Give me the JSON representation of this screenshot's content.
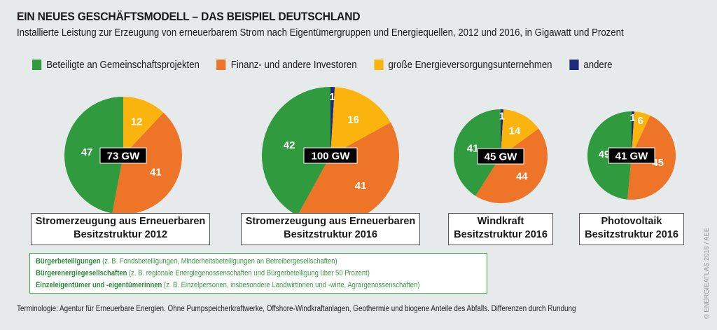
{
  "header": {
    "title": "EIN NEUES GESCHÄFTSMODELL – DAS BEISPIEL DEUTSCHLAND",
    "subtitle": "Installierte Leistung zur Erzeugung von erneuerbarem Strom nach Eigentümergruppen und Energiequellen, 2012 und 2016, in Gigawatt und Prozent"
  },
  "legend": [
    {
      "label": "Beteiligte an Gemeinschaftsprojekten",
      "color": "#2f9a3e"
    },
    {
      "label": "Finanz- und andere Investoren",
      "color": "#ee7428"
    },
    {
      "label": "große Energieversorgungsunternehmen",
      "color": "#fbb40d"
    },
    {
      "label": "andere",
      "color": "#1f2a7a"
    }
  ],
  "chart_data": [
    {
      "type": "pie",
      "title": "Stromerzeugung aus Erneuerbaren",
      "subtitle": "Besitzstruktur 2012",
      "total": "73 GW",
      "unit": "Prozent",
      "slices": [
        {
          "name": "andere",
          "value": 0,
          "label": ""
        },
        {
          "name": "große Energieversorgungsunternehmen",
          "value": 12,
          "label": "12"
        },
        {
          "name": "Finanz- und andere Investoren",
          "value": 41,
          "label": "41"
        },
        {
          "name": "Beteiligte an Gemeinschaftsprojekten",
          "value": 47,
          "label": "47"
        }
      ]
    },
    {
      "type": "pie",
      "title": "Stromerzeugung aus Erneuerbaren",
      "subtitle": "Besitzstruktur 2016",
      "total": "100 GW",
      "unit": "Prozent",
      "slices": [
        {
          "name": "andere",
          "value": 1,
          "label": "1"
        },
        {
          "name": "große Energieversorgungsunternehmen",
          "value": 16,
          "label": "16"
        },
        {
          "name": "Finanz- und andere Investoren",
          "value": 41,
          "label": "41"
        },
        {
          "name": "Beteiligte an Gemeinschaftsprojekten",
          "value": 42,
          "label": "42"
        }
      ]
    },
    {
      "type": "pie",
      "title": "Windkraft",
      "subtitle": "Besitzstruktur 2016",
      "total": "45 GW",
      "unit": "Prozent",
      "slices": [
        {
          "name": "andere",
          "value": 1,
          "label": "1"
        },
        {
          "name": "große Energieversorgungsunternehmen",
          "value": 14,
          "label": "14"
        },
        {
          "name": "Finanz- und andere Investoren",
          "value": 44,
          "label": "44"
        },
        {
          "name": "Beteiligte an Gemeinschaftsprojekten",
          "value": 41,
          "label": "41"
        }
      ]
    },
    {
      "type": "pie",
      "title": "Photovoltaik",
      "subtitle": "Besitzstruktur 2016",
      "total": "41 GW",
      "unit": "Prozent",
      "slices": [
        {
          "name": "andere",
          "value": 1,
          "label": "1"
        },
        {
          "name": "große Energieversorgungsunternehmen",
          "value": 6,
          "label": "6"
        },
        {
          "name": "Finanz- und andere Investoren",
          "value": 45,
          "label": "45"
        },
        {
          "name": "Beteiligte an Gemeinschaftsprojekten",
          "value": 49,
          "label": "49"
        }
      ]
    }
  ],
  "notes": [
    {
      "bold": "Bürgerbeteiligungen",
      "text": " (z. B. Fondsbeteiligungen, Minderheitsbeteiligungen an Betreibergesellschaften)"
    },
    {
      "bold": "Bürgerenergiegesellschaften",
      "text": " (z. B. regionale Energiegenossenschaften und Bürgerbeteiligung über 50 Prozent)"
    },
    {
      "bold": "Einzeleigentümer und -eigentümerinnen",
      "text": " (z. B. Einzelpersonen, insbesondere Landwirtinnen und -wirte, Agrargenossenschaften)"
    }
  ],
  "footer": "Terminologie: Agentur für Erneuerbare Energien. Ohne Pumpspeicherkraftwerke, Offshore-Windkraftanlagen, Geothermie und biogene Anteile des Abfalls. Differenzen durch Rundung",
  "copyright": "© ENERGIEATLAS 2018 / AEE"
}
